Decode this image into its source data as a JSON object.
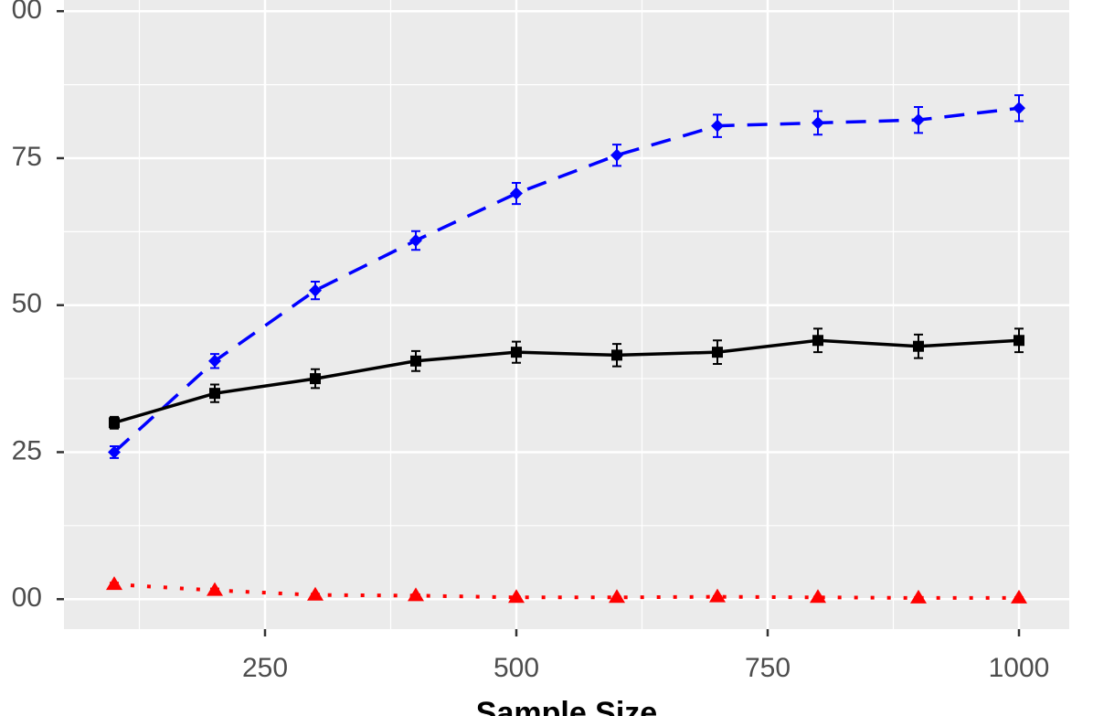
{
  "chart_data": {
    "type": "line",
    "xlabel": "Sample Size",
    "x": [
      100,
      200,
      300,
      400,
      500,
      600,
      700,
      800,
      900,
      1000
    ],
    "series": [
      {
        "color": "#0000ff",
        "linestyle": "dashed",
        "marker": "diamond",
        "values": [
          25,
          40.5,
          52.5,
          61,
          69,
          75.5,
          80.5,
          81,
          81.5,
          83.5
        ],
        "errors": [
          1,
          1.2,
          1.5,
          1.6,
          1.8,
          1.8,
          1.9,
          2,
          2.2,
          2.2
        ]
      },
      {
        "color": "#000000",
        "linestyle": "solid",
        "marker": "square",
        "values": [
          30,
          35,
          37.5,
          40.5,
          42,
          41.5,
          42,
          44,
          43,
          44
        ],
        "errors": [
          1,
          1.5,
          1.6,
          1.7,
          1.8,
          1.9,
          2,
          2,
          2,
          2
        ]
      },
      {
        "color": "#ff0000",
        "linestyle": "dotted",
        "marker": "triangle",
        "values": [
          2.5,
          1.5,
          0.7,
          0.6,
          0.3,
          0.3,
          0.4,
          0.3,
          0.2,
          0.2
        ],
        "errors": [
          0.3,
          0.3,
          0.2,
          0.2,
          0.1,
          0.1,
          0.1,
          0.1,
          0.1,
          0.1
        ]
      }
    ],
    "xlim": [
      50,
      1050
    ],
    "xticks": [
      250,
      500,
      750,
      1000
    ],
    "xminor": [
      125,
      375,
      625,
      875
    ],
    "ylim": [
      -5.1,
      101.9
    ],
    "yticks": [
      {
        "value": 0,
        "label": "00"
      },
      25,
      50,
      75,
      {
        "value": 100,
        "label": "00"
      }
    ],
    "yminor": [
      12.5,
      37.5,
      62.5,
      87.5
    ],
    "grid": true
  }
}
